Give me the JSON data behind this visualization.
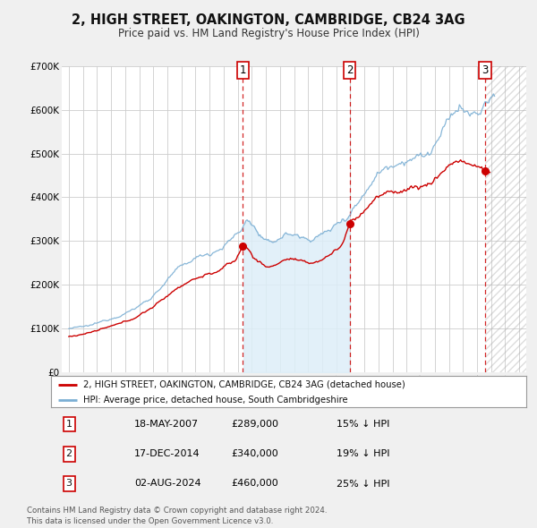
{
  "title": "2, HIGH STREET, OAKINGTON, CAMBRIDGE, CB24 3AG",
  "subtitle": "Price paid vs. HM Land Registry's House Price Index (HPI)",
  "legend_line1": "2, HIGH STREET, OAKINGTON, CAMBRIDGE, CB24 3AG (detached house)",
  "legend_line2": "HPI: Average price, detached house, South Cambridgeshire",
  "footer1": "Contains HM Land Registry data © Crown copyright and database right 2024.",
  "footer2": "This data is licensed under the Open Government Licence v3.0.",
  "sale_color": "#cc0000",
  "hpi_color": "#7bafd4",
  "hpi_fill_color": "#ddeef8",
  "background_color": "#f0f0f0",
  "plot_bg_color": "#ffffff",
  "grid_color": "#cccccc",
  "ylim": [
    0,
    700000
  ],
  "yticks": [
    0,
    100000,
    200000,
    300000,
    400000,
    500000,
    600000,
    700000
  ],
  "ytick_labels": [
    "£0",
    "£100K",
    "£200K",
    "£300K",
    "£400K",
    "£500K",
    "£600K",
    "£700K"
  ],
  "xlim_start": 1994.5,
  "xlim_end": 2027.5,
  "xticks": [
    1995,
    1996,
    1997,
    1998,
    1999,
    2000,
    2001,
    2002,
    2003,
    2004,
    2005,
    2006,
    2007,
    2008,
    2009,
    2010,
    2011,
    2012,
    2013,
    2014,
    2015,
    2016,
    2017,
    2018,
    2019,
    2020,
    2021,
    2022,
    2023,
    2024,
    2025,
    2026,
    2027
  ],
  "sales": [
    {
      "date": 2007.37,
      "price": 289000,
      "label": "1"
    },
    {
      "date": 2014.96,
      "price": 340000,
      "label": "2"
    },
    {
      "date": 2024.58,
      "price": 460000,
      "label": "3"
    }
  ],
  "sale_annotations": [
    {
      "label": "1",
      "date": "18-MAY-2007",
      "price": "£289,000",
      "pct": "15%",
      "dir": "↓"
    },
    {
      "label": "2",
      "date": "17-DEC-2014",
      "price": "£340,000",
      "pct": "19%",
      "dir": "↓"
    },
    {
      "label": "3",
      "date": "02-AUG-2024",
      "price": "£460,000",
      "pct": "25%",
      "dir": "↓"
    }
  ],
  "shade_start": 2007.37,
  "shade_end": 2014.96,
  "hatch_start": 2024.58,
  "hatch_end": 2027.5,
  "vline_dates": [
    2007.37,
    2014.96,
    2024.58
  ]
}
